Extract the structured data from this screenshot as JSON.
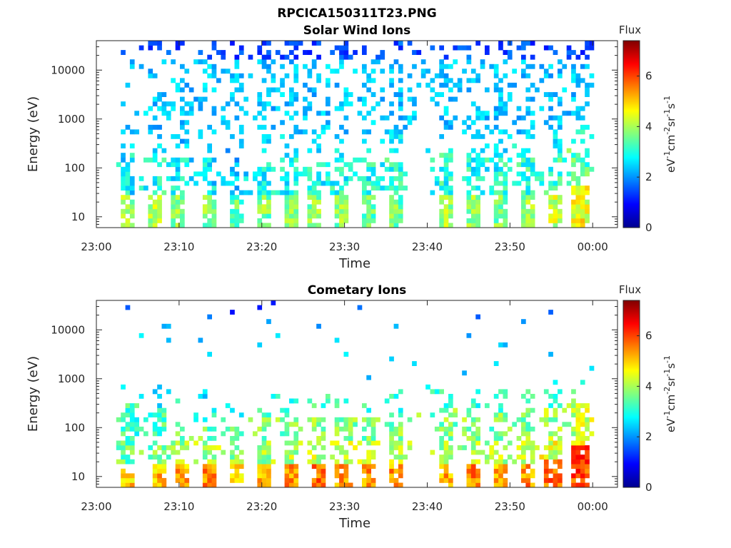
{
  "figure": {
    "title": "RPCICA150311T23.PNG",
    "colorbar_title": "Flux",
    "colorbar_label_parts": [
      "eV",
      "-1",
      "cm",
      "-2",
      "sr",
      "-1",
      "s",
      "-1"
    ]
  },
  "chart_data": [
    {
      "type": "heatmap",
      "title": "Solar Wind Ions",
      "xlabel": "Time",
      "ylabel": "Energy (eV)",
      "x_ticks": [
        "23:00",
        "23:10",
        "23:20",
        "23:30",
        "23:40",
        "23:50",
        "00:00"
      ],
      "x_range_minutes": [
        0,
        63
      ],
      "y_ticks": [
        "10",
        "100",
        "1000",
        "10000"
      ],
      "y_scale": "log",
      "y_range": [
        6,
        40000
      ],
      "colorbar": {
        "ticks": [
          "0",
          "2",
          "4",
          "6"
        ],
        "range": [
          0,
          7.4
        ],
        "colormap": "jet"
      },
      "pulses": [
        {
          "t": 3.2,
          "w": 1.0,
          "lowpeak": 4.3,
          "lowtop": 28,
          "midE": 350,
          "midv": 2.6,
          "highdens": 0.18
        },
        {
          "t": 4.1,
          "w": 0.8,
          "lowpeak": 4.0,
          "lowtop": 28,
          "midE": 200,
          "midv": 2.7,
          "highdens": 0.15
        },
        {
          "t": 6.8,
          "w": 1.8,
          "lowpeak": 4.4,
          "lowtop": 28,
          "midE": 180,
          "midv": 2.8,
          "highdens": 0.28
        },
        {
          "t": 9.5,
          "w": 1.6,
          "lowpeak": 4.0,
          "lowtop": 28,
          "midE": 150,
          "midv": 2.7,
          "highdens": 0.3
        },
        {
          "t": 13.2,
          "w": 1.6,
          "lowpeak": 4.0,
          "lowtop": 28,
          "midE": 150,
          "midv": 2.6,
          "highdens": 0.3
        },
        {
          "t": 16.6,
          "w": 1.8,
          "lowpeak": 3.8,
          "lowtop": 28,
          "midE": 140,
          "midv": 2.6,
          "highdens": 0.3
        },
        {
          "t": 19.9,
          "w": 1.6,
          "lowpeak": 4.0,
          "lowtop": 28,
          "midE": 130,
          "midv": 2.8,
          "highdens": 0.3
        },
        {
          "t": 23.3,
          "w": 1.8,
          "lowpeak": 4.2,
          "lowtop": 28,
          "midE": 150,
          "midv": 2.8,
          "highdens": 0.35
        },
        {
          "t": 26.3,
          "w": 1.6,
          "lowpeak": 4.1,
          "lowtop": 28,
          "midE": 150,
          "midv": 2.8,
          "highdens": 0.35
        },
        {
          "t": 29.3,
          "w": 1.6,
          "lowpeak": 4.0,
          "lowtop": 28,
          "midE": 150,
          "midv": 2.9,
          "highdens": 0.35
        },
        {
          "t": 32.5,
          "w": 1.7,
          "lowpeak": 3.9,
          "lowtop": 28,
          "midE": 150,
          "midv": 2.9,
          "highdens": 0.35
        },
        {
          "t": 35.8,
          "w": 1.8,
          "lowpeak": 3.9,
          "lowtop": 28,
          "midE": 150,
          "midv": 3.0,
          "highdens": 0.35
        },
        {
          "t": 41.8,
          "w": 1.8,
          "lowpeak": 4.2,
          "lowtop": 28,
          "midE": 200,
          "midv": 2.9,
          "highdens": 0.35
        },
        {
          "t": 45.2,
          "w": 1.8,
          "lowpeak": 4.1,
          "lowtop": 28,
          "midE": 180,
          "midv": 2.9,
          "highdens": 0.35
        },
        {
          "t": 48.4,
          "w": 1.8,
          "lowpeak": 4.0,
          "lowtop": 28,
          "midE": 160,
          "midv": 2.9,
          "highdens": 0.35
        },
        {
          "t": 51.8,
          "w": 1.6,
          "lowpeak": 4.2,
          "lowtop": 28,
          "midE": 160,
          "midv": 3.0,
          "highdens": 0.35
        },
        {
          "t": 55.0,
          "w": 1.8,
          "lowpeak": 4.5,
          "lowtop": 28,
          "midE": 170,
          "midv": 3.0,
          "highdens": 0.35
        },
        {
          "t": 58.2,
          "w": 1.8,
          "lowpeak": 4.9,
          "lowtop": 40,
          "midE": 250,
          "midv": 3.2,
          "highdens": 0.4
        }
      ]
    },
    {
      "type": "heatmap",
      "title": "Cometary Ions",
      "xlabel": "Time",
      "ylabel": "Energy (eV)",
      "x_ticks": [
        "23:00",
        "23:10",
        "23:20",
        "23:30",
        "23:40",
        "23:50",
        "00:00"
      ],
      "x_range_minutes": [
        0,
        63
      ],
      "y_ticks": [
        "10",
        "100",
        "1000",
        "10000"
      ],
      "y_scale": "log",
      "y_range": [
        6,
        40000
      ],
      "colorbar": {
        "ticks": [
          "0",
          "2",
          "4",
          "6"
        ],
        "range": [
          0,
          7.4
        ],
        "colormap": "jet"
      },
      "pulses": [
        {
          "t": 3.6,
          "w": 1.6,
          "lowpeak": 5.3,
          "lowtop": 20,
          "midE": 300,
          "midv": 3.0,
          "highdens": 0.03
        },
        {
          "t": 7.2,
          "w": 1.8,
          "lowpeak": 5.4,
          "lowtop": 20,
          "midE": 250,
          "midv": 3.0,
          "highdens": 0.03
        },
        {
          "t": 10.0,
          "w": 1.6,
          "lowpeak": 5.6,
          "lowtop": 20,
          "midE": 120,
          "midv": 3.2,
          "highdens": 0.02
        },
        {
          "t": 13.3,
          "w": 1.8,
          "lowpeak": 5.8,
          "lowtop": 20,
          "midE": 100,
          "midv": 3.3,
          "highdens": 0.02
        },
        {
          "t": 16.6,
          "w": 1.6,
          "lowpeak": 5.4,
          "lowtop": 20,
          "midE": 100,
          "midv": 3.2,
          "highdens": 0.02
        },
        {
          "t": 20.0,
          "w": 1.8,
          "lowpeak": 5.5,
          "lowtop": 20,
          "midE": 150,
          "midv": 3.4,
          "highdens": 0.02
        },
        {
          "t": 23.2,
          "w": 1.8,
          "lowpeak": 5.7,
          "lowtop": 20,
          "midE": 150,
          "midv": 3.4,
          "highdens": 0.02
        },
        {
          "t": 26.5,
          "w": 1.8,
          "lowpeak": 5.9,
          "lowtop": 20,
          "midE": 180,
          "midv": 3.5,
          "highdens": 0.02
        },
        {
          "t": 29.6,
          "w": 1.8,
          "lowpeak": 5.8,
          "lowtop": 20,
          "midE": 180,
          "midv": 3.5,
          "highdens": 0.02
        },
        {
          "t": 32.7,
          "w": 1.8,
          "lowpeak": 5.8,
          "lowtop": 20,
          "midE": 180,
          "midv": 3.4,
          "highdens": 0.02
        },
        {
          "t": 35.9,
          "w": 1.8,
          "lowpeak": 5.7,
          "lowtop": 20,
          "midE": 200,
          "midv": 3.4,
          "highdens": 0.02
        },
        {
          "t": 41.9,
          "w": 1.8,
          "lowpeak": 5.6,
          "lowtop": 20,
          "midE": 250,
          "midv": 3.4,
          "highdens": 0.02
        },
        {
          "t": 45.3,
          "w": 1.8,
          "lowpeak": 5.7,
          "lowtop": 20,
          "midE": 250,
          "midv": 3.4,
          "highdens": 0.02
        },
        {
          "t": 48.7,
          "w": 1.8,
          "lowpeak": 5.6,
          "lowtop": 20,
          "midE": 220,
          "midv": 3.4,
          "highdens": 0.02
        },
        {
          "t": 51.8,
          "w": 1.8,
          "lowpeak": 5.7,
          "lowtop": 20,
          "midE": 250,
          "midv": 3.5,
          "highdens": 0.02
        },
        {
          "t": 55.0,
          "w": 2.0,
          "lowpeak": 6.1,
          "lowtop": 25,
          "midE": 250,
          "midv": 3.6,
          "highdens": 0.03
        },
        {
          "t": 58.3,
          "w": 2.0,
          "lowpeak": 6.4,
          "lowtop": 40,
          "midE": 300,
          "midv": 3.8,
          "highdens": 0.03
        }
      ]
    }
  ]
}
